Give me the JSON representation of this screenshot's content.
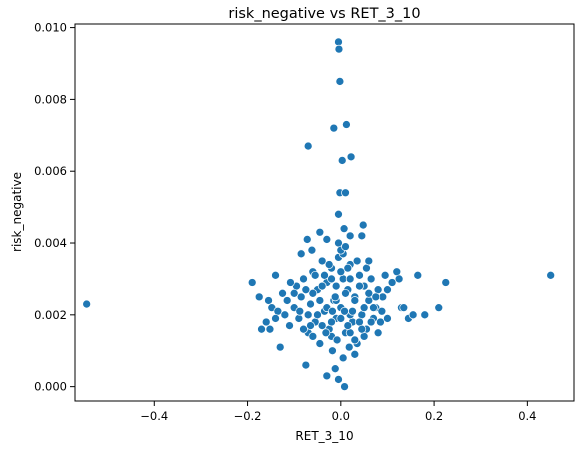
{
  "chart_data": {
    "type": "scatter",
    "title": "risk_negative vs RET_3_10",
    "xlabel": "RET_3_10",
    "ylabel": "risk_negative",
    "xlim": [
      -0.57,
      0.5
    ],
    "ylim": [
      -0.0004,
      0.0101
    ],
    "xticks": [
      -0.4,
      -0.2,
      0.0,
      0.2,
      0.4
    ],
    "xtick_labels": [
      "−0.4",
      "−0.2",
      "0.0",
      "0.2",
      "0.4"
    ],
    "yticks": [
      0.0,
      0.002,
      0.004,
      0.006,
      0.008,
      0.01
    ],
    "ytick_labels": [
      "0.000",
      "0.002",
      "0.004",
      "0.006",
      "0.008",
      "0.010"
    ],
    "grid": false,
    "marker_color": "#1f77b4",
    "marker_edge_color": "#ffffff",
    "points": [
      [
        -0.545,
        0.0023
      ],
      [
        0.45,
        0.0031
      ],
      [
        -0.005,
        0.0096
      ],
      [
        -0.004,
        0.0094
      ],
      [
        -0.002,
        0.0085
      ],
      [
        0.012,
        0.0073
      ],
      [
        -0.015,
        0.0072
      ],
      [
        -0.07,
        0.0067
      ],
      [
        0.022,
        0.0064
      ],
      [
        0.003,
        0.0063
      ],
      [
        -0.002,
        0.0054
      ],
      [
        0.01,
        0.0054
      ],
      [
        -0.005,
        0.0048
      ],
      [
        0.048,
        0.0045
      ],
      [
        0.007,
        0.0044
      ],
      [
        0.02,
        0.0042
      ],
      [
        -0.045,
        0.0043
      ],
      [
        -0.03,
        0.0041
      ],
      [
        0.045,
        0.0042
      ],
      [
        -0.072,
        0.0041
      ],
      [
        -0.085,
        0.0037
      ],
      [
        -0.062,
        0.0038
      ],
      [
        -0.005,
        0.004
      ],
      [
        -0.14,
        0.0031
      ],
      [
        -0.19,
        0.0029
      ],
      [
        -0.175,
        0.0025
      ],
      [
        -0.155,
        0.0024
      ],
      [
        -0.148,
        0.0022
      ],
      [
        -0.135,
        0.0021
      ],
      [
        -0.125,
        0.0026
      ],
      [
        -0.115,
        0.0024
      ],
      [
        -0.17,
        0.0016
      ],
      [
        -0.16,
        0.0018
      ],
      [
        -0.152,
        0.0016
      ],
      [
        -0.14,
        0.0019
      ],
      [
        -0.13,
        0.0011
      ],
      [
        -0.12,
        0.002
      ],
      [
        -0.11,
        0.0017
      ],
      [
        -0.1,
        0.0022
      ],
      [
        -0.095,
        0.0028
      ],
      [
        -0.09,
        0.0019
      ],
      [
        -0.085,
        0.0025
      ],
      [
        -0.08,
        0.003
      ],
      [
        -0.075,
        0.0006
      ],
      [
        -0.07,
        0.0015
      ],
      [
        -0.065,
        0.0023
      ],
      [
        -0.06,
        0.0032
      ],
      [
        -0.055,
        0.0018
      ],
      [
        -0.05,
        0.0027
      ],
      [
        -0.045,
        0.0012
      ],
      [
        -0.04,
        0.0035
      ],
      [
        -0.035,
        0.0021
      ],
      [
        -0.03,
        0.0029
      ],
      [
        -0.025,
        0.0016
      ],
      [
        -0.02,
        0.0033
      ],
      [
        -0.015,
        0.0024
      ],
      [
        -0.01,
        0.0019
      ],
      [
        -0.005,
        0.0036
      ],
      [
        0.0,
        0.0022
      ],
      [
        0.005,
        0.003
      ],
      [
        0.01,
        0.0015
      ],
      [
        0.015,
        0.0027
      ],
      [
        0.02,
        0.0034
      ],
      [
        0.025,
        0.0018
      ],
      [
        0.03,
        0.0025
      ],
      [
        0.035,
        0.0012
      ],
      [
        0.04,
        0.0031
      ],
      [
        0.045,
        0.002
      ],
      [
        0.05,
        0.0028
      ],
      [
        0.055,
        0.0016
      ],
      [
        0.06,
        0.0024
      ],
      [
        0.065,
        0.003
      ],
      [
        0.07,
        0.0019
      ],
      [
        0.075,
        0.0022
      ],
      [
        0.08,
        0.0027
      ],
      [
        0.085,
        0.0018
      ],
      [
        0.09,
        0.0025
      ],
      [
        0.095,
        0.0031
      ],
      [
        0.1,
        0.0019
      ],
      [
        0.11,
        0.0029
      ],
      [
        0.12,
        0.0032
      ],
      [
        0.125,
        0.003
      ],
      [
        0.13,
        0.0022
      ],
      [
        0.135,
        0.0022
      ],
      [
        0.145,
        0.0019
      ],
      [
        0.155,
        0.002
      ],
      [
        0.165,
        0.0031
      ],
      [
        0.18,
        0.002
      ],
      [
        0.21,
        0.0022
      ],
      [
        0.225,
        0.0029
      ],
      [
        -0.03,
        0.0003
      ],
      [
        -0.012,
        0.0005
      ],
      [
        -0.005,
        0.0002
      ],
      [
        0.008,
        0.0
      ],
      [
        0.005,
        0.0008
      ],
      [
        -0.018,
        0.001
      ],
      [
        0.03,
        0.0009
      ],
      [
        0.018,
        0.0011
      ],
      [
        -0.06,
        0.0026
      ],
      [
        -0.04,
        0.0028
      ],
      [
        -0.02,
        0.003
      ],
      [
        0.0,
        0.0032
      ],
      [
        0.02,
        0.003
      ],
      [
        0.04,
        0.0028
      ],
      [
        0.06,
        0.0026
      ],
      [
        -0.05,
        0.002
      ],
      [
        -0.03,
        0.0022
      ],
      [
        -0.01,
        0.0024
      ],
      [
        0.01,
        0.0026
      ],
      [
        0.03,
        0.0024
      ],
      [
        0.05,
        0.0022
      ],
      [
        -0.04,
        0.0017
      ],
      [
        -0.02,
        0.0018
      ],
      [
        0.0,
        0.0019
      ],
      [
        0.02,
        0.002
      ],
      [
        0.04,
        0.0018
      ],
      [
        -0.06,
        0.0014
      ],
      [
        -0.02,
        0.0014
      ],
      [
        0.02,
        0.0015
      ],
      [
        0.05,
        0.0014
      ],
      [
        -0.01,
        0.0028
      ],
      [
        0.015,
        0.0033
      ],
      [
        -0.025,
        0.0034
      ],
      [
        0.035,
        0.0035
      ],
      [
        0.005,
        0.0037
      ],
      [
        -0.035,
        0.0031
      ],
      [
        0.055,
        0.0033
      ],
      [
        -0.075,
        0.0027
      ],
      [
        0.075,
        0.0025
      ],
      [
        -0.088,
        0.0021
      ],
      [
        0.088,
        0.0021
      ],
      [
        -0.1,
        0.0026
      ],
      [
        0.1,
        0.0027
      ],
      [
        -0.108,
        0.0029
      ],
      [
        0.06,
        0.0035
      ],
      [
        0.0,
        0.0038
      ],
      [
        0.01,
        0.0039
      ],
      [
        -0.012,
        0.0025
      ],
      [
        0.025,
        0.0021
      ],
      [
        -0.045,
        0.0024
      ],
      [
        0.045,
        0.0016
      ],
      [
        -0.065,
        0.0017
      ],
      [
        0.065,
        0.0018
      ],
      [
        -0.08,
        0.0016
      ],
      [
        0.08,
        0.0015
      ],
      [
        -0.07,
        0.002
      ],
      [
        0.07,
        0.0022
      ],
      [
        -0.055,
        0.0031
      ],
      [
        0.015,
        0.0017
      ],
      [
        -0.008,
        0.0013
      ],
      [
        0.03,
        0.0013
      ],
      [
        -0.032,
        0.0015
      ],
      [
        0.008,
        0.0021
      ],
      [
        -0.018,
        0.0021
      ]
    ]
  }
}
